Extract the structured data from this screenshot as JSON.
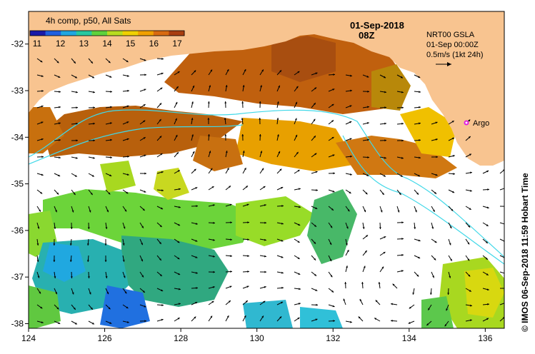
{
  "colorbar": {
    "title": "4h comp, p50, All Sats",
    "ticks": [
      "11",
      "12",
      "13",
      "14",
      "15",
      "16",
      "17"
    ],
    "colors": [
      "#1a1aa8",
      "#1f5fe0",
      "#20a6e0",
      "#28c8a0",
      "#5ed23c",
      "#b8dc20",
      "#f0d000",
      "#f0a000",
      "#d86a10",
      "#a83e10"
    ]
  },
  "annotations": {
    "date": "01-Sep-2018",
    "time": "08Z",
    "product": "NRT00 GSLA",
    "product_time": "01-Sep 00:00Z",
    "scale_label": "0.5m/s (1kt 24h)",
    "argo_label": "Argo"
  },
  "credit": "© IMOS 06-Sep-2018 11:59 Hobart Time",
  "axes": {
    "x_ticks": [
      "124",
      "126",
      "128",
      "130",
      "132",
      "134",
      "136"
    ],
    "y_ticks": [
      "-32",
      "-33",
      "-34",
      "-35",
      "-36",
      "-37",
      "-38"
    ],
    "lon_range": [
      124,
      136.5
    ],
    "lat_range": [
      -38.1,
      -31.3
    ]
  },
  "colors": {
    "land": "#f8c490",
    "current_line": "#40d8e8",
    "arrow": "#000000",
    "argo": "#e020e0"
  }
}
